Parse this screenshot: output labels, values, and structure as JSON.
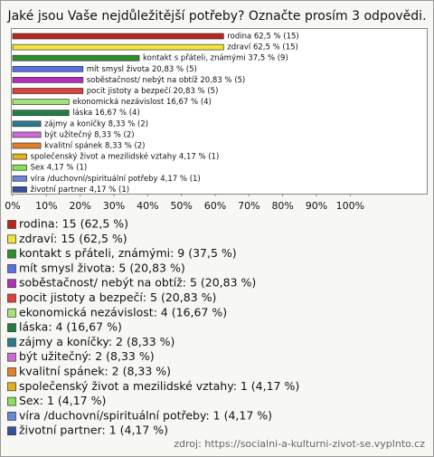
{
  "chart_data": {
    "type": "bar",
    "orientation": "horizontal",
    "title": "Jaké jsou Vaše nejdůležitější potřeby? Označte prosím 3 odpovědi.",
    "categories": [
      "rodina",
      "zdraví",
      "kontakt s přáteli, známými",
      "mít smysl života",
      "soběstačnost/ nebýt na obtíž",
      "pocit jistoty a bezpečí",
      "ekonomická nezávislost",
      "láska",
      "zájmy a koníčky",
      "být užitečný",
      "kvalitní spánek",
      "společenský život a mezilidské vztahy",
      "Sex",
      "víra /duchovní/spirituální potřeby",
      "životní partner"
    ],
    "values": [
      62.5,
      62.5,
      37.5,
      20.83,
      20.83,
      20.83,
      16.67,
      16.67,
      8.33,
      8.33,
      8.33,
      4.17,
      4.17,
      4.17,
      4.17
    ],
    "value_labels": [
      "rodina 62,5 % (15)",
      "zdraví 62,5 % (15)",
      "kontakt s přáteli, známými 37,5 % (9)",
      "mít smysl života 20,83 % (5)",
      "soběstačnost/ nebýt na obtíž 20,83 % (5)",
      "pocit jistoty a bezpečí 20,83 % (5)",
      "ekonomická nezávislost 16,67 % (4)",
      "láska 16,67 % (4)",
      "zájmy a koníčky 8,33 % (2)",
      "být užitečný 8,33 % (2)",
      "kvalitní spánek 8,33 % (2)",
      "společenský život a mezilidské vztahy 4,17 % (1)",
      "Sex 4,17 % (1)",
      "víra /duchovní/spirituální potřeby 4,17 % (1)",
      "životní partner 4,17 % (1)"
    ],
    "legend_labels": [
      "rodina: 15 (62,5 %)",
      "zdraví: 15 (62,5 %)",
      "kontakt s přáteli, známými: 9 (37,5 %)",
      "mít smysl života: 5 (20,83 %)",
      "soběstačnost/ nebýt na obtíž: 5 (20,83 %)",
      "pocit jistoty a bezpečí: 5 (20,83 %)",
      "ekonomická nezávislost: 4 (16,67 %)",
      "láska: 4 (16,67 %)",
      "zájmy a koníčky: 2 (8,33 %)",
      "být užitečný: 2 (8,33 %)",
      "kvalitní spánek: 2 (8,33 %)",
      "společenský život a mezilidské vztahy: 1 (4,17 %)",
      "Sex: 1 (4,17 %)",
      "víra /duchovní/spirituální potřeby: 1 (4,17 %)",
      "životní partner: 1 (4,17 %)"
    ],
    "colors": [
      "#b8261e",
      "#f2e23c",
      "#2e8f2e",
      "#5a6ee6",
      "#b22fb8",
      "#e0403a",
      "#a6e27a",
      "#1f7f45",
      "#2e7a8c",
      "#d06ad6",
      "#e0802c",
      "#e0b21e",
      "#86e05a",
      "#6a86d8",
      "#34509e"
    ],
    "xlim": [
      0,
      120
    ],
    "xticks": [
      {
        "value": 0,
        "label": "0%"
      },
      {
        "value": 10,
        "label": "10%"
      },
      {
        "value": 20,
        "label": "20%"
      },
      {
        "value": 30,
        "label": "30%"
      },
      {
        "value": 40,
        "label": "40%"
      },
      {
        "value": 50,
        "label": "50%"
      },
      {
        "value": 60,
        "label": "60%"
      },
      {
        "value": 70,
        "label": "70%"
      },
      {
        "value": 80,
        "label": "80%"
      },
      {
        "value": 90,
        "label": "90%"
      },
      {
        "value": 100,
        "label": "100%"
      }
    ],
    "grid": false,
    "source": "zdroj: https://socialni-a-kulturni-zivot-se.vyplnto.cz"
  }
}
